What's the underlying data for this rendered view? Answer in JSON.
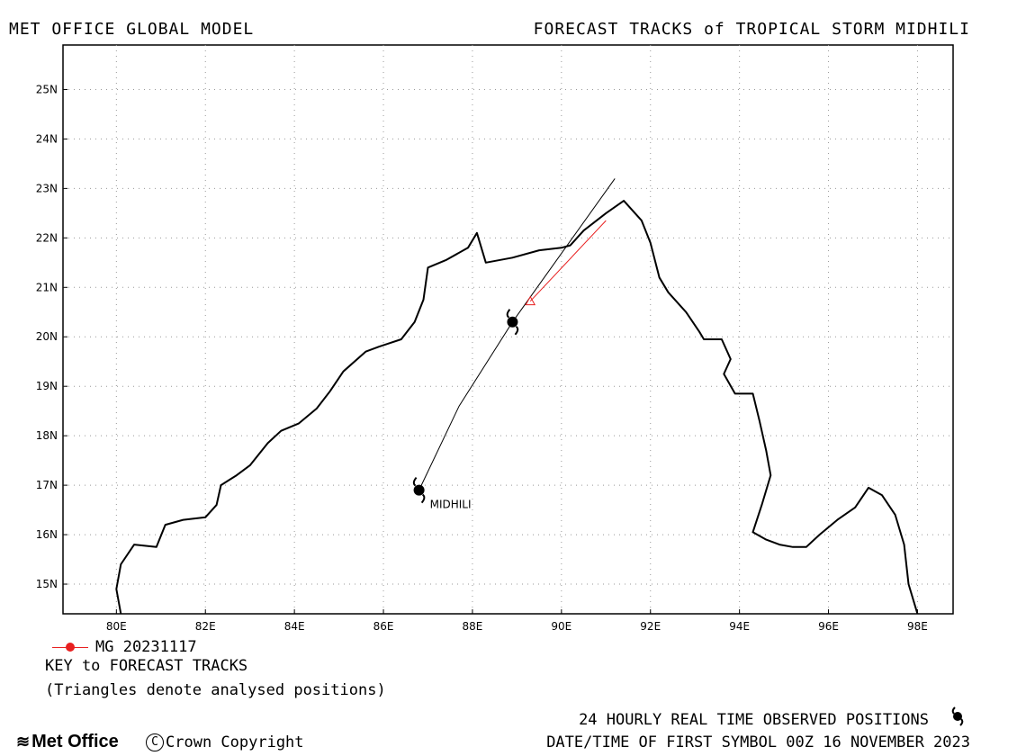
{
  "header": {
    "left_title": "MET OFFICE GLOBAL MODEL",
    "right_title": "FORECAST TRACKS of TROPICAL STORM MIDHILI"
  },
  "map": {
    "lon_range": [
      78.8,
      98.8
    ],
    "lat_range": [
      14.4,
      25.9
    ],
    "lon_ticks": [
      "80E",
      "82E",
      "84E",
      "86E",
      "88E",
      "90E",
      "92E",
      "94E",
      "96E",
      "98E"
    ],
    "lat_ticks": [
      "15N",
      "16N",
      "17N",
      "18N",
      "19N",
      "20N",
      "21N",
      "22N",
      "23N",
      "24N",
      "25N"
    ],
    "grid": "dotted",
    "storm_label": "MIDHILI",
    "coastline": [
      [
        80.1,
        14.4
      ],
      [
        80.0,
        14.9
      ],
      [
        80.1,
        15.4
      ],
      [
        80.4,
        15.8
      ],
      [
        80.9,
        15.75
      ],
      [
        81.1,
        16.2
      ],
      [
        81.5,
        16.3
      ],
      [
        82.0,
        16.35
      ],
      [
        82.25,
        16.6
      ],
      [
        82.35,
        17.0
      ],
      [
        82.7,
        17.2
      ],
      [
        83.0,
        17.4
      ],
      [
        83.4,
        17.85
      ],
      [
        83.7,
        18.1
      ],
      [
        84.1,
        18.25
      ],
      [
        84.5,
        18.55
      ],
      [
        84.8,
        18.9
      ],
      [
        85.1,
        19.3
      ],
      [
        85.6,
        19.7
      ],
      [
        85.9,
        19.8
      ],
      [
        86.4,
        19.95
      ],
      [
        86.7,
        20.3
      ],
      [
        86.9,
        20.75
      ],
      [
        87.0,
        21.4
      ],
      [
        87.4,
        21.55
      ],
      [
        87.9,
        21.8
      ],
      [
        88.1,
        22.1
      ],
      [
        88.3,
        21.5
      ],
      [
        88.9,
        21.6
      ],
      [
        89.5,
        21.75
      ],
      [
        90.0,
        21.8
      ],
      [
        90.2,
        21.85
      ],
      [
        90.5,
        22.15
      ],
      [
        91.0,
        22.5
      ],
      [
        91.4,
        22.75
      ],
      [
        91.8,
        22.35
      ],
      [
        92.0,
        21.9
      ],
      [
        92.2,
        21.2
      ],
      [
        92.4,
        20.9
      ],
      [
        92.8,
        20.5
      ],
      [
        93.1,
        20.1
      ],
      [
        93.2,
        19.95
      ],
      [
        93.6,
        19.95
      ],
      [
        93.8,
        19.55
      ],
      [
        93.65,
        19.25
      ],
      [
        93.9,
        18.85
      ],
      [
        94.3,
        18.85
      ],
      [
        94.45,
        18.3
      ],
      [
        94.6,
        17.7
      ],
      [
        94.7,
        17.2
      ],
      [
        94.5,
        16.6
      ],
      [
        94.3,
        16.05
      ],
      [
        94.6,
        15.9
      ],
      [
        94.9,
        15.8
      ],
      [
        95.2,
        15.75
      ],
      [
        95.5,
        15.75
      ],
      [
        95.8,
        16.0
      ],
      [
        96.2,
        16.3
      ],
      [
        96.6,
        16.55
      ],
      [
        96.9,
        16.95
      ],
      [
        97.2,
        16.8
      ],
      [
        97.5,
        16.4
      ],
      [
        97.7,
        15.8
      ],
      [
        97.8,
        15.0
      ],
      [
        98.0,
        14.4
      ]
    ]
  },
  "tracks": {
    "observed": [
      [
        86.8,
        16.9
      ],
      [
        87.7,
        18.6
      ],
      [
        88.9,
        20.3
      ],
      [
        91.2,
        23.2
      ]
    ],
    "forecast": [
      [
        91.0,
        22.35
      ],
      [
        89.3,
        20.72
      ]
    ],
    "analysed_position": [
      89.3,
      20.72
    ],
    "observed_symbols": [
      [
        86.8,
        16.9
      ],
      [
        88.9,
        20.3
      ]
    ]
  },
  "legend": {
    "entry_label": "MG 20231117",
    "entry_color": "#e82020",
    "key_title": "KEY to FORECAST TRACKS",
    "key_note": "(Triangles denote analysed positions)"
  },
  "footer": {
    "brand": "Met Office",
    "copyright": "Crown Copyright",
    "obs_positions": "24 HOURLY REAL TIME OBSERVED POSITIONS",
    "first_symbol": "DATE/TIME OF FIRST SYMBOL 00Z 16 NOVEMBER 2023"
  }
}
